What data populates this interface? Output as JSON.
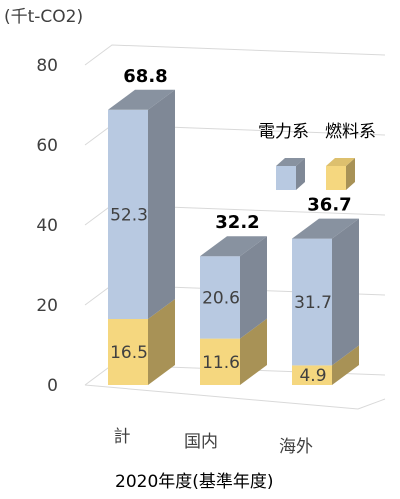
{
  "chart_data": {
    "type": "bar",
    "stacked": true,
    "three_d": true,
    "categories": [
      "計",
      "国内",
      "海外"
    ],
    "series": [
      {
        "name": "燃料系",
        "values": [
          16.5,
          11.6,
          4.9
        ],
        "color": "#f5d77f",
        "side_color": "#a89256",
        "top_color": "#ddc06e"
      },
      {
        "name": "電力系",
        "values": [
          52.3,
          20.6,
          31.7
        ],
        "color": "#b8c9e1",
        "side_color": "#7f8896",
        "top_color": "#8892a0"
      }
    ],
    "totals": [
      "68.8",
      "32.2",
      "36.7"
    ],
    "segment_labels": [
      [
        "16.5",
        "11.6",
        "4.9"
      ],
      [
        "52.3",
        "20.6",
        "31.7"
      ]
    ],
    "unit_label": "(千t-CO2)",
    "xlabel": "2020年度(基準年度)",
    "y_ticks": [
      "0",
      "20",
      "40",
      "60",
      "80"
    ],
    "ylim": [
      0,
      80
    ],
    "grid": true,
    "legend_position": "top-right",
    "legend_label_power": "電力系",
    "legend_label_fuel": "燃料系"
  }
}
